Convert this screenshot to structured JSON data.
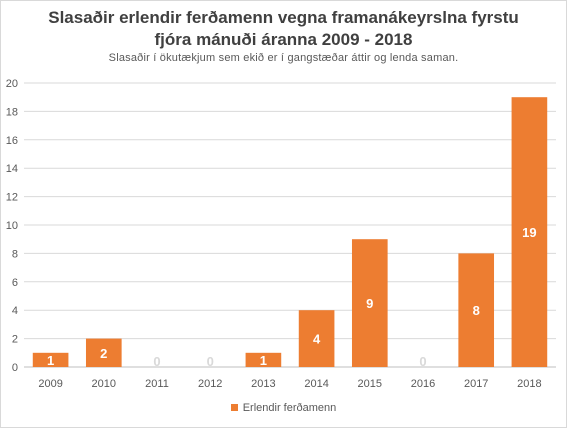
{
  "chart_data": {
    "type": "bar",
    "title": "Slasaðir erlendir ferðamenn vegna framanákeyrslna fyrstu fjóra mánuði áranna 2009 - 2018",
    "title_lines": [
      "Slasaðir erlendir ferðamenn vegna framanákeyrslna fyrstu",
      "fjóra mánuði áranna 2009 - 2018"
    ],
    "subtitle": "Slasaðir í ökutækjum sem ekið er í gangstæðar áttir og lenda saman.",
    "categories": [
      "2009",
      "2010",
      "2011",
      "2012",
      "2013",
      "2014",
      "2015",
      "2016",
      "2017",
      "2018"
    ],
    "series": [
      {
        "name": "Erlendir ferðamenn",
        "values": [
          1,
          2,
          0,
          0,
          1,
          4,
          9,
          0,
          8,
          19
        ],
        "color": "#ed7d31"
      }
    ],
    "ylim": [
      0,
      20
    ],
    "yticks": [
      0,
      2,
      4,
      6,
      8,
      10,
      12,
      14,
      16,
      18,
      20
    ],
    "grid": true,
    "legend_position": "bottom",
    "data_labels": true
  }
}
